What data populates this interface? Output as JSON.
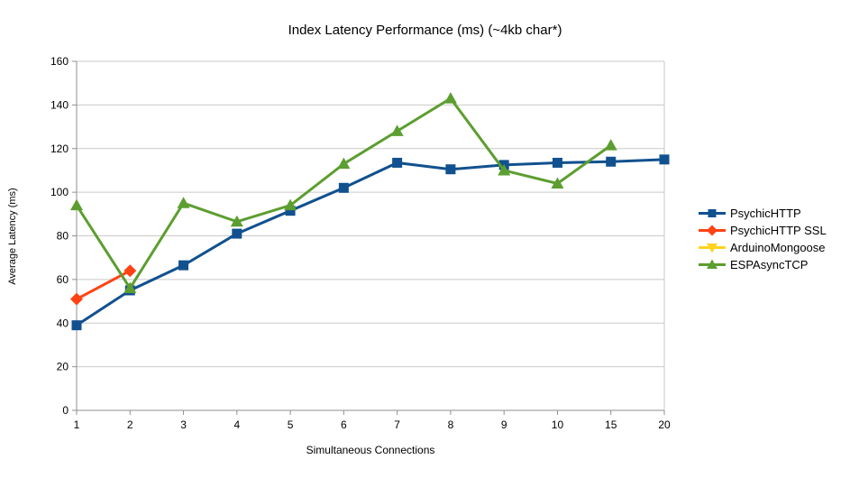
{
  "chart_data": {
    "type": "line",
    "title": "Index Latency Performance (ms) (~4kb char*)",
    "xlabel": "Simultaneous Connections",
    "ylabel": "Average Latency (ms)",
    "categories": [
      "1",
      "2",
      "3",
      "4",
      "5",
      "6",
      "7",
      "8",
      "9",
      "10",
      "15",
      "20"
    ],
    "ylim": [
      0,
      160
    ],
    "ytick_step": 20,
    "grid": "horizontal-only",
    "legend_position": "right",
    "series": [
      {
        "name": "PsychicHTTP",
        "color": "#11518f",
        "marker": "square",
        "values": [
          39,
          55,
          66.5,
          81,
          91.5,
          102,
          113.5,
          110.5,
          112.5,
          113.5,
          114,
          115
        ]
      },
      {
        "name": "PsychicHTTP SSL",
        "color": "#ff4214",
        "marker": "diamond",
        "values": [
          51,
          64,
          null,
          null,
          null,
          null,
          null,
          null,
          null,
          null,
          null,
          null
        ]
      },
      {
        "name": "ArduinoMongoose",
        "color": "#ffd320",
        "marker": "triangle-down",
        "values": [
          null,
          null,
          null,
          null,
          null,
          null,
          null,
          null,
          null,
          null,
          null,
          null
        ]
      },
      {
        "name": "ESPAsyncTCP",
        "color": "#5c9e30",
        "marker": "triangle-up",
        "values": [
          94,
          56,
          95,
          86.5,
          94,
          113,
          128,
          143,
          110,
          104,
          121.5,
          null
        ]
      }
    ]
  }
}
